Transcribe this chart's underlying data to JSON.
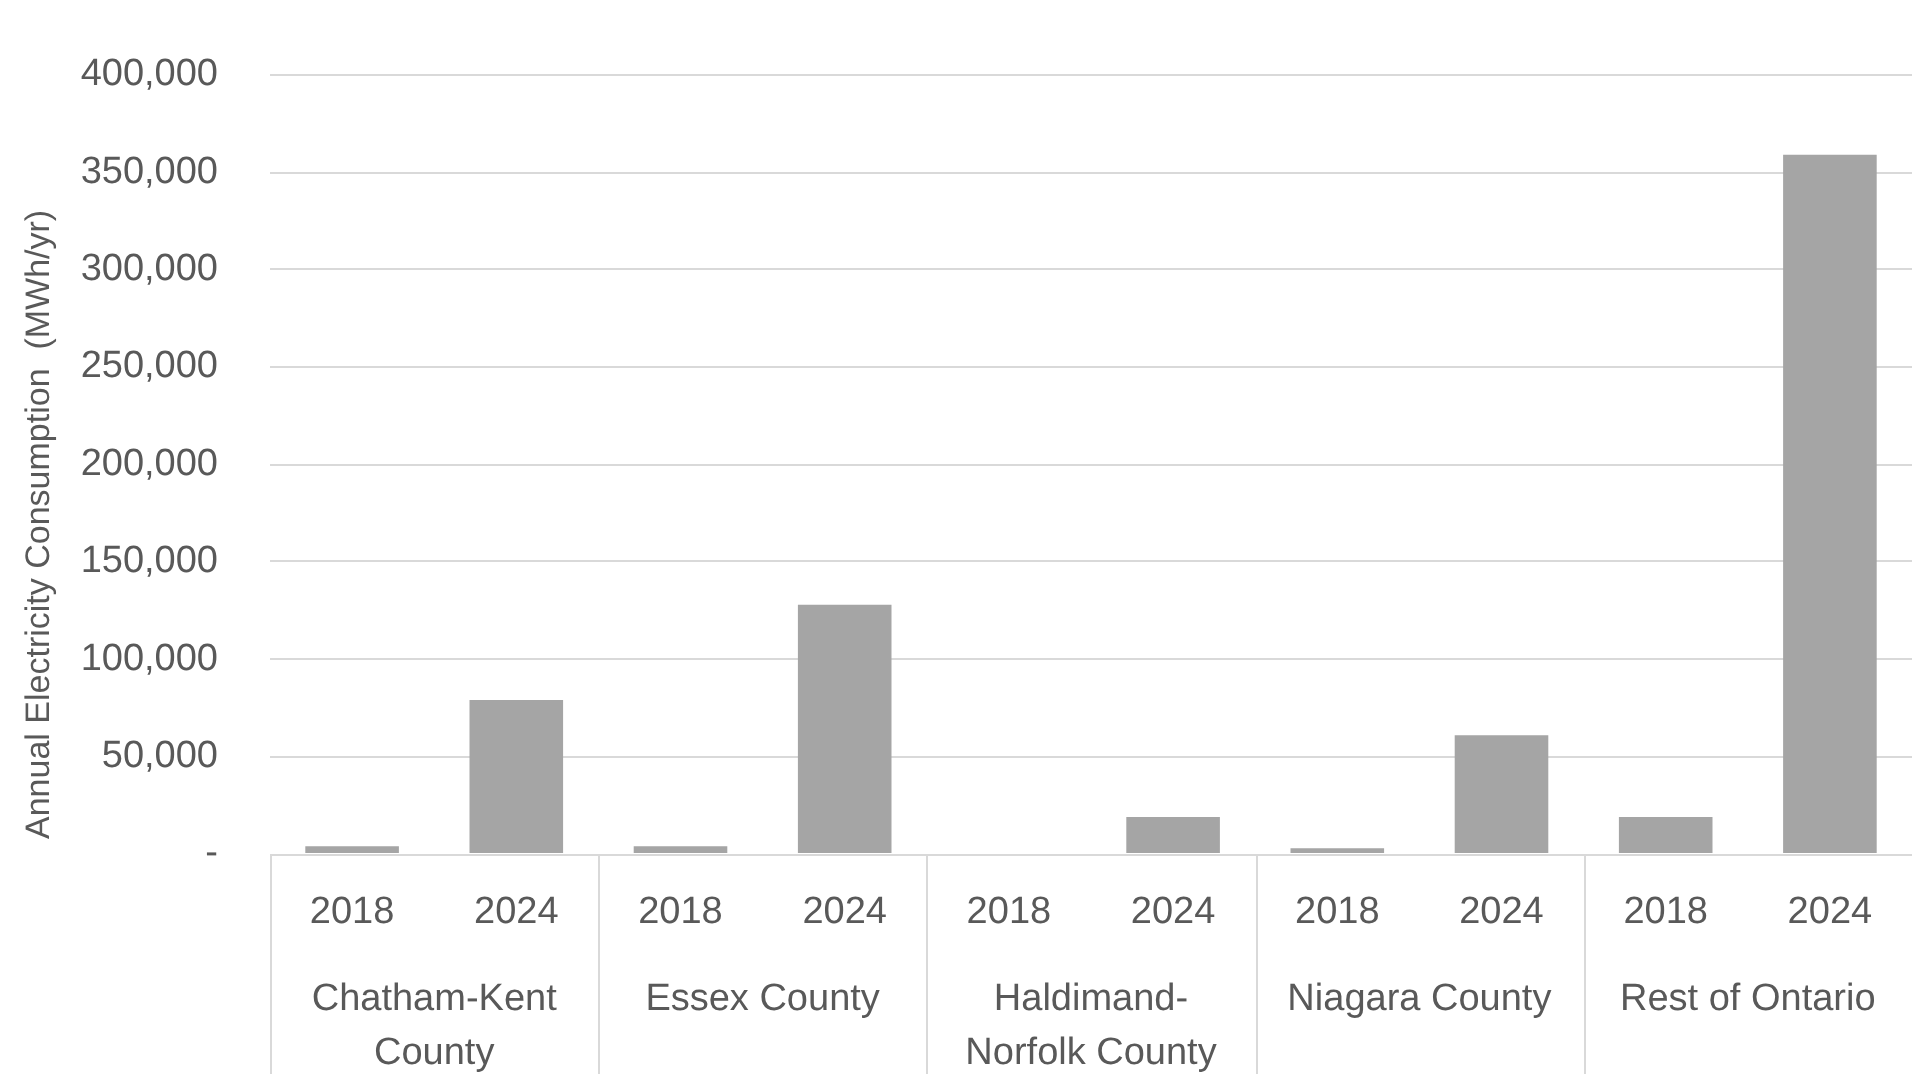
{
  "chart_data": {
    "type": "bar",
    "ylabel": "Annual Electricity Consumption  (MWh/yr)",
    "categories": [
      "2018",
      "2024",
      "2018",
      "2024",
      "2018",
      "2024",
      "2018",
      "2024",
      "2018",
      "2024"
    ],
    "values": [
      4000,
      79000,
      4000,
      128000,
      null,
      19000,
      3000,
      61000,
      19000,
      359000
    ],
    "color": "#a5a5a5",
    "ylim": [
      0,
      400000
    ],
    "yticks": [
      {
        "value": 0,
        "label": "-"
      },
      {
        "value": 50000,
        "label": "50,000"
      },
      {
        "value": 100000,
        "label": "100,000"
      },
      {
        "value": 150000,
        "label": "150,000"
      },
      {
        "value": 200000,
        "label": "200,000"
      },
      {
        "value": 250000,
        "label": "250,000"
      },
      {
        "value": 300000,
        "label": "300,000"
      },
      {
        "value": 350000,
        "label": "350,000"
      },
      {
        "value": 400000,
        "label": "400,000"
      }
    ],
    "grid": "y",
    "annotations": [
      "Chatham-Kent County",
      "Essex County",
      "Haldimand-Norfolk County",
      "Niagara County",
      "Rest of Ontario"
    ]
  }
}
